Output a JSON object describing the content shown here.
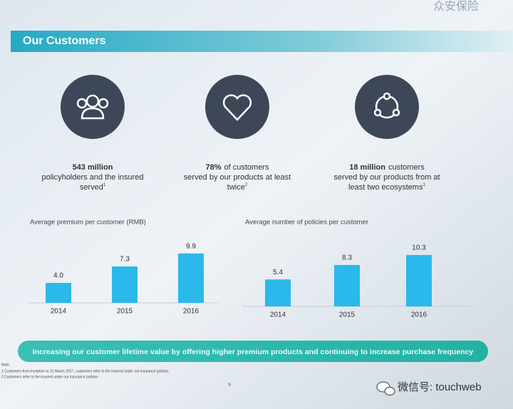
{
  "logo": "众安保险",
  "header": {
    "title": "Our Customers"
  },
  "stats": [
    {
      "highlight": "543 million",
      "lines": [
        "policyholders and the insured",
        "served"
      ],
      "note": "1"
    },
    {
      "highlight": "78%",
      "rest": "of customers",
      "lines": [
        "served by our products at least",
        "twice"
      ],
      "note": "2"
    },
    {
      "highlight": "18 million",
      "rest": "customers",
      "lines": [
        "served by our products from at",
        "least two ecosystems"
      ],
      "note": "1"
    }
  ],
  "chart_data": [
    {
      "type": "bar",
      "title": "Average premium per customer (RMB)",
      "categories": [
        "2014",
        "2015",
        "2016"
      ],
      "values": [
        4.0,
        7.3,
        9.9
      ],
      "value_labels": [
        "4.0",
        "7.3",
        "9.9"
      ],
      "color": "#2bb8ea"
    },
    {
      "type": "bar",
      "title": "Average number of policies per customer",
      "categories": [
        "2014",
        "2015",
        "2016"
      ],
      "values": [
        5.4,
        8.3,
        10.3
      ],
      "color": "#2bb8ea"
    }
  ],
  "banner": "Increasing our customer lifetime value by offering higher premium products and continuing to increase purchase frequency",
  "footnotes": [
    "Note:",
    "1 Customers from inception to 31 March 2017, customers refer to the insured under our insurance policies",
    "2 Customers refer to the insured under our insurance policies"
  ],
  "page_number": "9",
  "watermark": "微信号: touchweb"
}
